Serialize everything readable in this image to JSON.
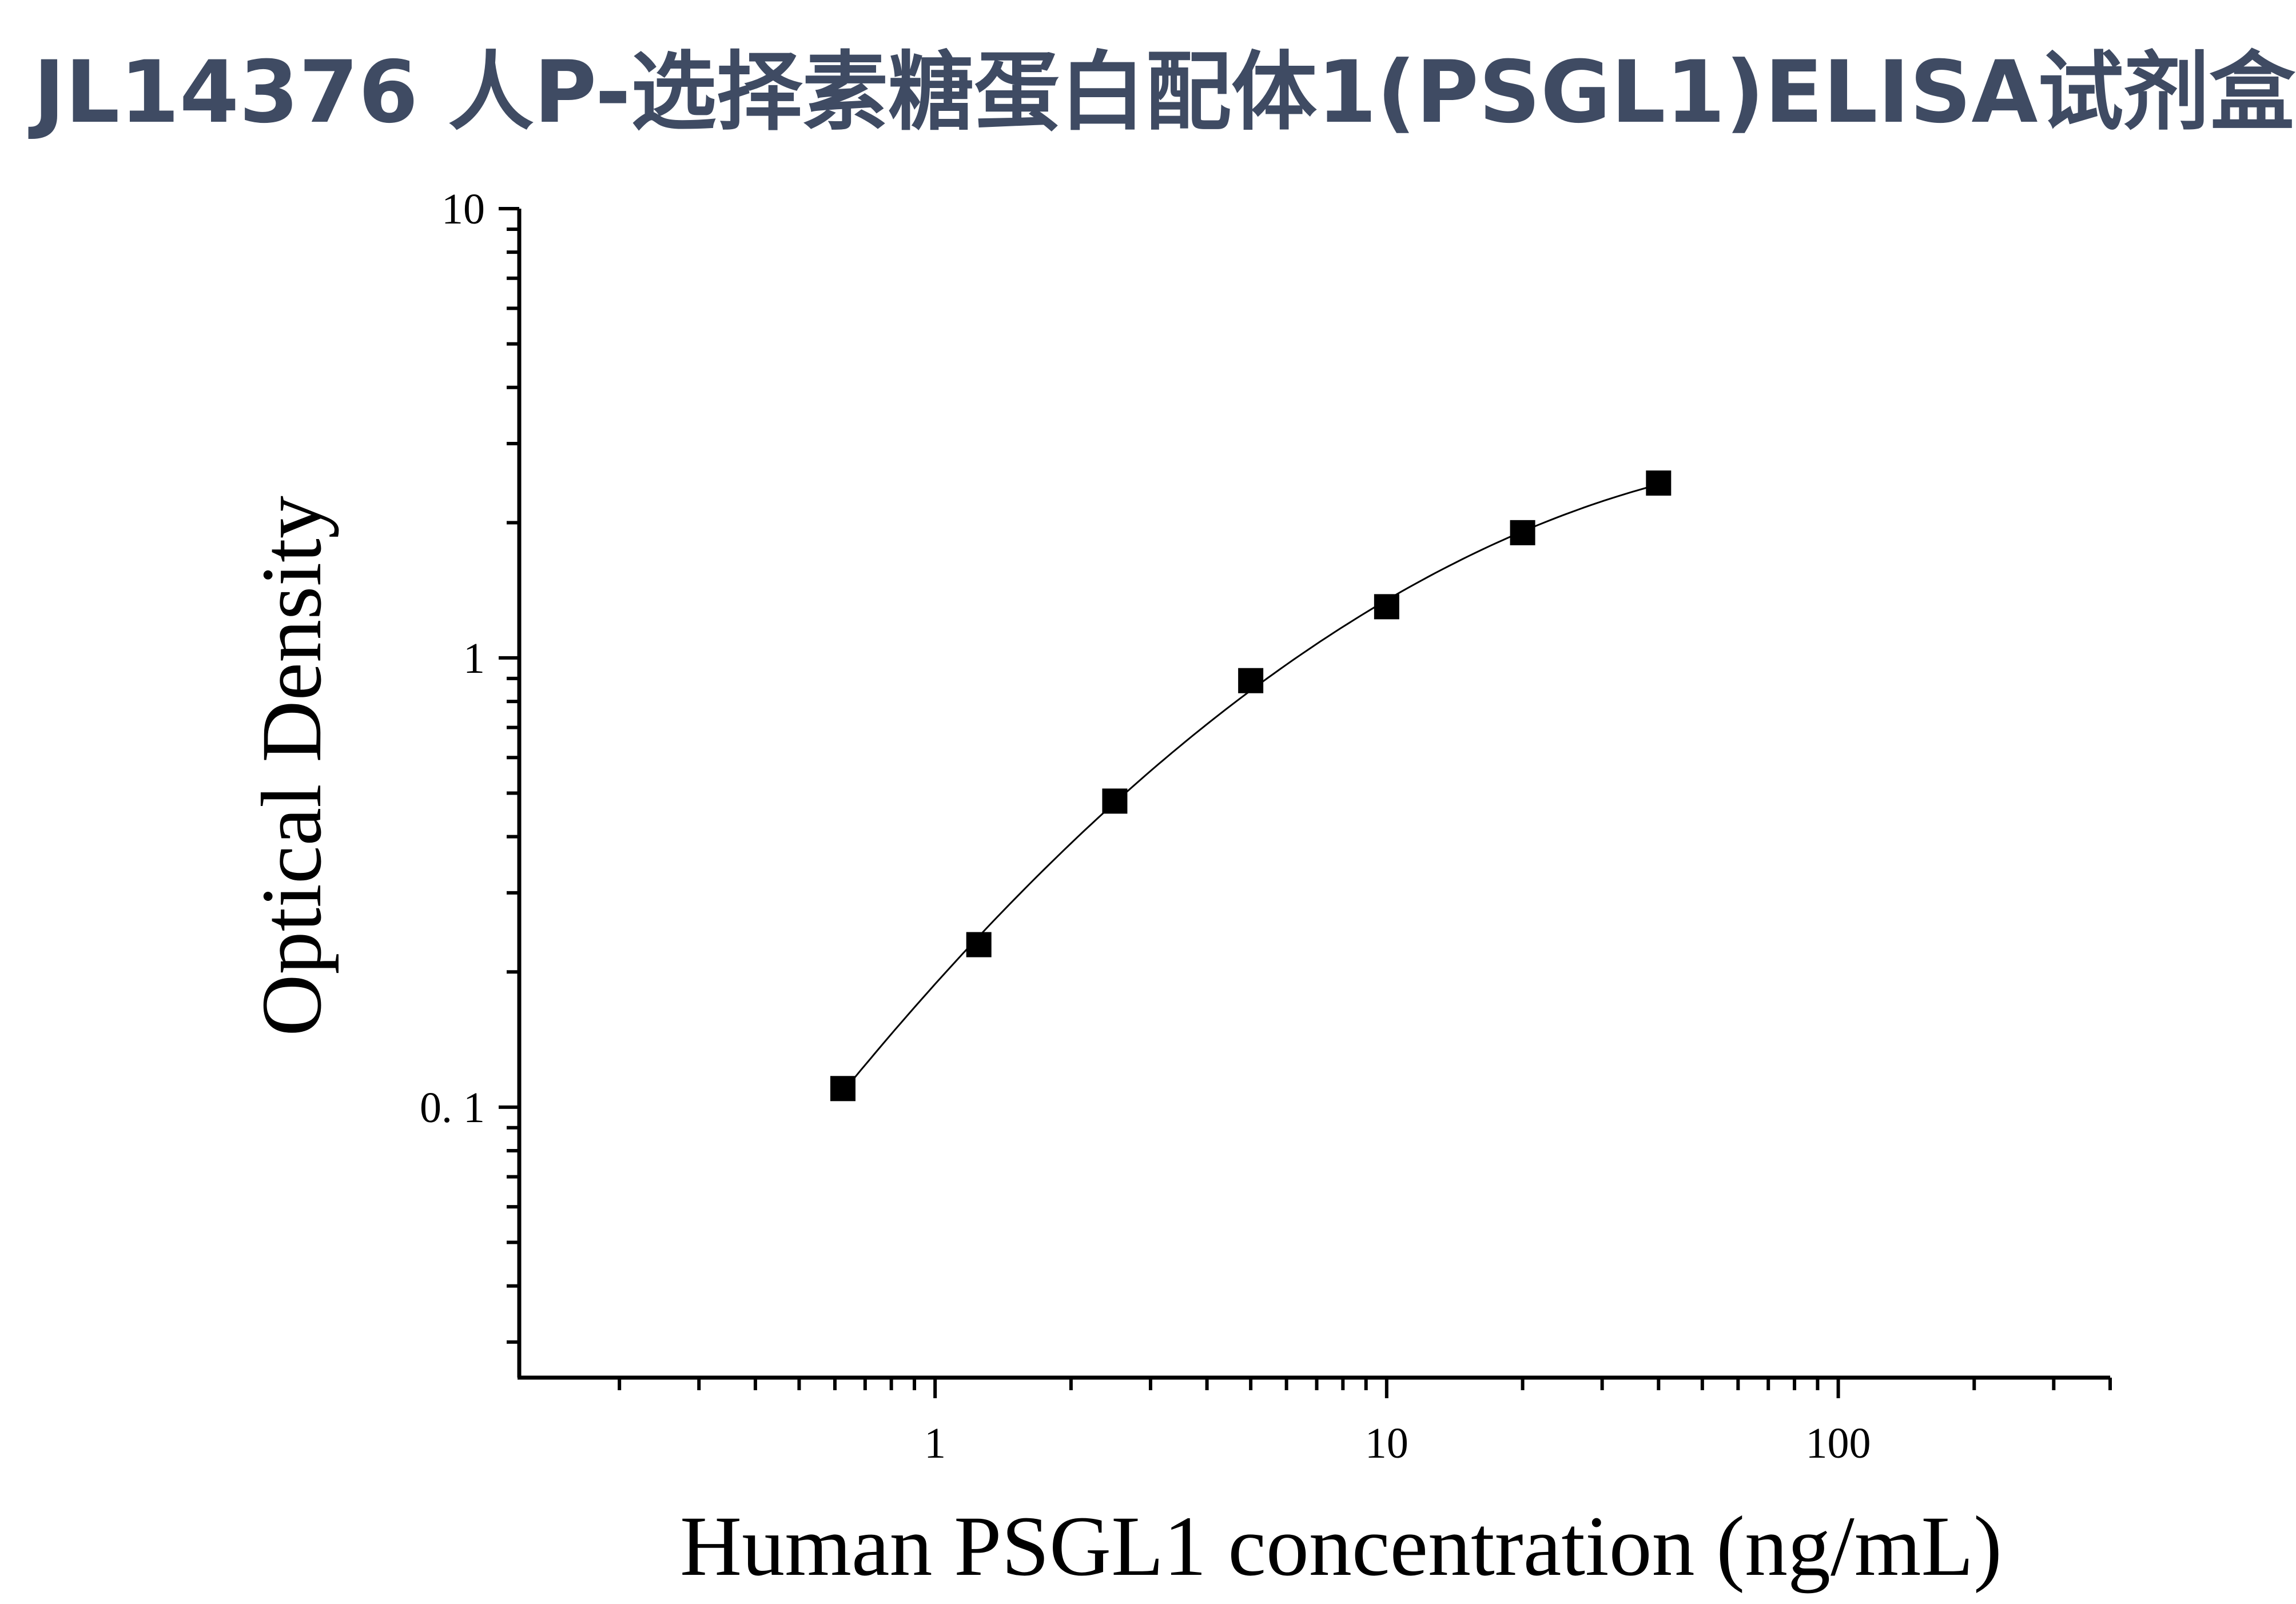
{
  "title": "JL14376 人P-选择素糖蛋白配体1(PSGL1)ELISA试剂盒",
  "chart_data": {
    "type": "scatter",
    "title": "JL14376 人P-选择素糖蛋白配体1(PSGL1)ELISA试剂盒",
    "xlabel": "Human PSGL1 concentration (ng/mL)",
    "ylabel": "Optical Density",
    "x_scale": "log",
    "y_scale": "log",
    "xlim": [
      0.12,
      400
    ],
    "ylim": [
      0.025,
      10
    ],
    "x_ticks": [
      1,
      10,
      100
    ],
    "x_tick_labels": [
      "1",
      "10",
      "100"
    ],
    "y_ticks": [
      0.1,
      1,
      10
    ],
    "y_tick_labels": [
      "0. 1",
      "1",
      "10"
    ],
    "grid": false,
    "legend": "none",
    "series": [
      {
        "x": [
          0.625,
          1.25,
          2.5,
          5,
          10,
          20,
          40
        ],
        "y": [
          0.11,
          0.23,
          0.48,
          0.89,
          1.3,
          1.9,
          2.45
        ]
      }
    ],
    "fit_curve": true,
    "marker": "square",
    "color": "#000000"
  }
}
